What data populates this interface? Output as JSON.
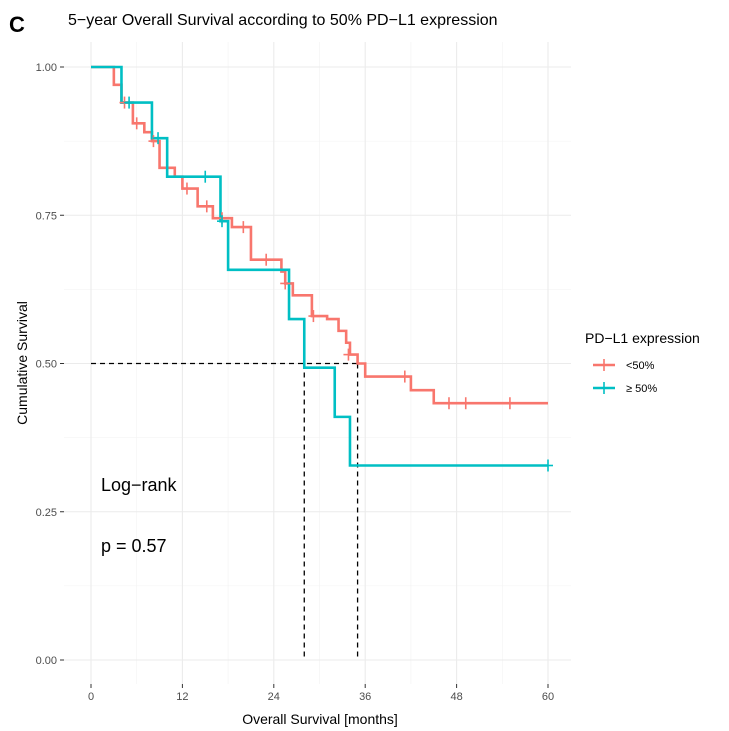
{
  "panel_label": "C",
  "chart_data": {
    "type": "line",
    "subtype": "kaplan-meier",
    "title": "5−year Overall Survival according to 50% PD−L1 expression",
    "xlabel": "Overall Survival [months]",
    "ylabel": "Cumulative Survival",
    "xlim": [
      0,
      60
    ],
    "ylim": [
      0,
      1
    ],
    "x_ticks": [
      0,
      12,
      24,
      36,
      48,
      60
    ],
    "y_ticks": [
      0,
      0.25,
      0.5,
      0.75,
      1.0
    ],
    "x_tick_labels": [
      "0",
      "12",
      "24",
      "36",
      "48",
      "60"
    ],
    "y_tick_labels": [
      "0.00",
      "0.25",
      "0.50",
      "0.75",
      "1.00"
    ],
    "grid": true,
    "legend": {
      "title": "PD−L1 expression",
      "position": "right"
    },
    "series": [
      {
        "name": "<50%",
        "color": "#F8766D",
        "steps": [
          [
            0,
            1.0
          ],
          [
            3,
            0.97
          ],
          [
            4,
            0.94
          ],
          [
            5.5,
            0.905
          ],
          [
            7,
            0.89
          ],
          [
            8,
            0.875
          ],
          [
            9,
            0.83
          ],
          [
            11,
            0.815
          ],
          [
            12,
            0.795
          ],
          [
            14,
            0.765
          ],
          [
            16,
            0.745
          ],
          [
            18.5,
            0.73
          ],
          [
            21,
            0.675
          ],
          [
            25,
            0.655
          ],
          [
            25.5,
            0.635
          ],
          [
            26.5,
            0.615
          ],
          [
            29,
            0.58
          ],
          [
            31,
            0.575
          ],
          [
            32.5,
            0.555
          ],
          [
            33.5,
            0.535
          ],
          [
            34,
            0.515
          ],
          [
            35,
            0.5
          ],
          [
            36,
            0.478
          ],
          [
            42,
            0.455
          ],
          [
            45,
            0.433
          ],
          [
            60,
            0.433
          ]
        ],
        "censors": [
          [
            4.4,
            0.94
          ],
          [
            6.0,
            0.905
          ],
          [
            8.2,
            0.875
          ],
          [
            12.6,
            0.795
          ],
          [
            15.2,
            0.765
          ],
          [
            17.2,
            0.745
          ],
          [
            20.0,
            0.73
          ],
          [
            23.0,
            0.675
          ],
          [
            25.5,
            0.635
          ],
          [
            29.2,
            0.58
          ],
          [
            33.8,
            0.515
          ],
          [
            41.2,
            0.478
          ],
          [
            47.0,
            0.433
          ],
          [
            49.2,
            0.433
          ],
          [
            55.0,
            0.433
          ]
        ]
      },
      {
        "name": "≥ 50%",
        "color": "#00BFC4",
        "steps": [
          [
            0,
            1.0
          ],
          [
            4,
            0.94
          ],
          [
            8,
            0.88
          ],
          [
            10,
            0.815
          ],
          [
            17,
            0.74
          ],
          [
            18,
            0.658
          ],
          [
            26,
            0.575
          ],
          [
            28,
            0.493
          ],
          [
            32,
            0.41
          ],
          [
            34,
            0.328
          ],
          [
            60,
            0.328
          ]
        ],
        "censors": [
          [
            5.0,
            0.94
          ],
          [
            8.8,
            0.88
          ],
          [
            15.0,
            0.815
          ],
          [
            17.2,
            0.74
          ],
          [
            60,
            0.328
          ]
        ]
      }
    ],
    "median_lines": [
      {
        "y": 0.5,
        "x_end": 35
      },
      {
        "x": 28,
        "y_end": 0.5
      },
      {
        "x": 35,
        "y_end": 0.5
      }
    ],
    "annotations": [
      "Log−rank",
      "p = 0.57"
    ]
  }
}
